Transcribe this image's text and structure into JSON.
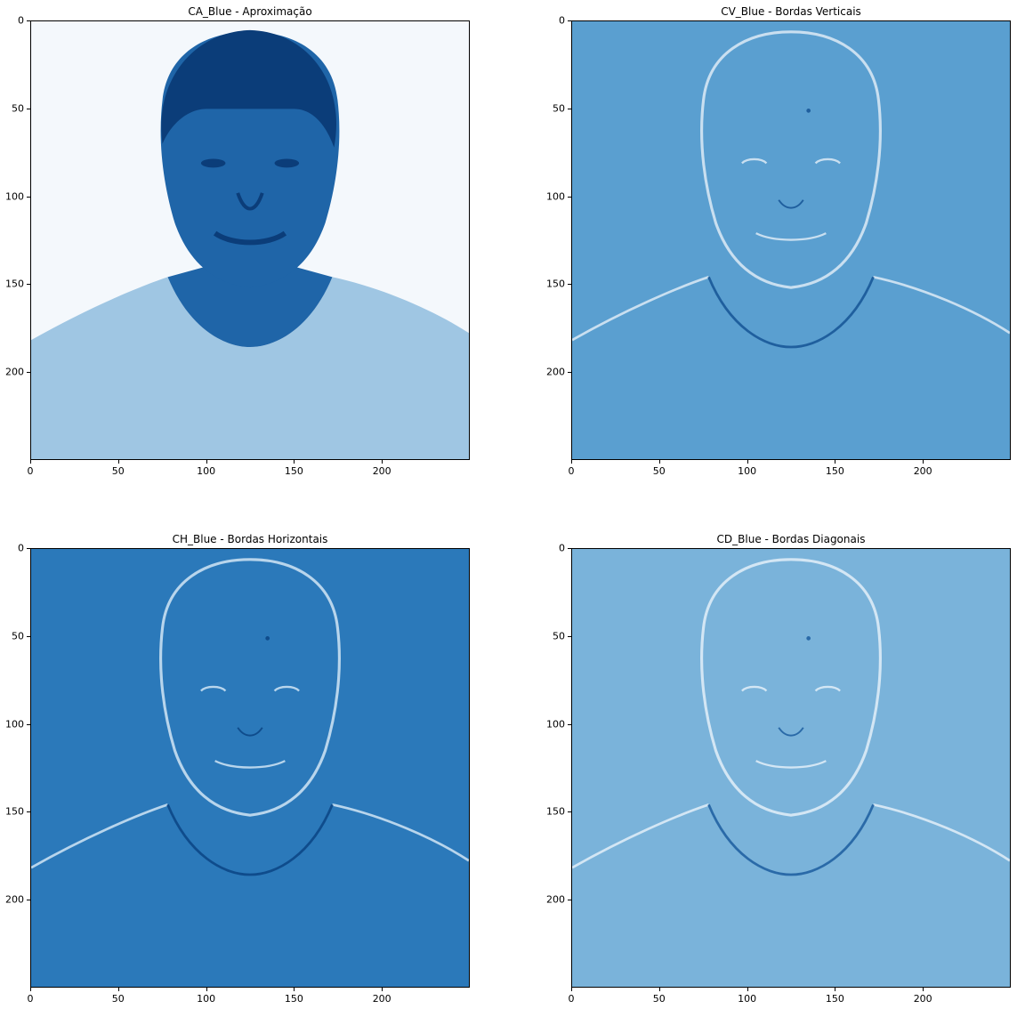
{
  "figure": {
    "colormap": "Blues",
    "panels": [
      {
        "id": "ca",
        "title": "CA_Blue - Aproximação",
        "background": "#f4f8fc",
        "subject_color": "#1f65a8",
        "hair_color": "#0b3d79",
        "shirt_color": "#9fc6e3",
        "xticks": [
          "0",
          "50",
          "100",
          "150",
          "200"
        ],
        "yticks": [
          "0",
          "50",
          "100",
          "150",
          "200"
        ]
      },
      {
        "id": "cv",
        "title": "CV_Blue - Bordas Verticais",
        "background": "#5a9fd0",
        "subject_color": "#5a9fd0",
        "edge_light": "#c9dff0",
        "edge_dark": "#1f5f9e",
        "xticks": [
          "0",
          "50",
          "100",
          "150",
          "200"
        ],
        "yticks": [
          "0",
          "50",
          "100",
          "150",
          "200"
        ]
      },
      {
        "id": "ch",
        "title": "CH_Blue - Bordas Horizontais",
        "background": "#2b79ba",
        "subject_color": "#2b79ba",
        "edge_light": "#b8d5ec",
        "edge_dark": "#0f4c8c",
        "xticks": [
          "0",
          "50",
          "100",
          "150",
          "200"
        ],
        "yticks": [
          "0",
          "50",
          "100",
          "150",
          "200"
        ]
      },
      {
        "id": "cd",
        "title": "CD_Blue - Bordas Diagonais",
        "background": "#7ab3da",
        "subject_color": "#7ab3da",
        "edge_light": "#d3e6f4",
        "edge_dark": "#2a6aa8",
        "xticks": [
          "0",
          "50",
          "100",
          "150",
          "200"
        ],
        "yticks": [
          "0",
          "50",
          "100",
          "150",
          "200"
        ]
      }
    ]
  }
}
